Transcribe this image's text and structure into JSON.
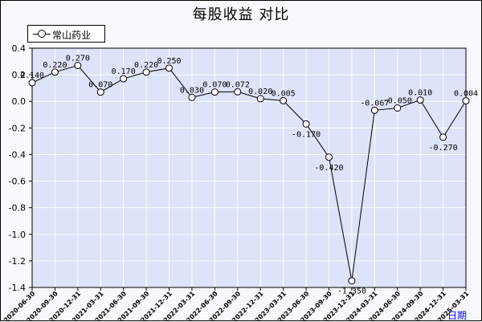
{
  "chart_data": {
    "type": "line",
    "title": "每股收益  对比",
    "x_unit_label": "日期",
    "x": [
      "2020-06-30",
      "2020-09-30",
      "2020-12-31",
      "2021-03-31",
      "2021-06-30",
      "2021-09-30",
      "2021-12-31",
      "2022-03-31",
      "2022-06-30",
      "2022-09-30",
      "2022-12-31",
      "2023-03-31",
      "2023-06-30",
      "2023-09-30",
      "2023-12-31",
      "2024-03-31",
      "2024-06-30",
      "2024-09-30",
      "2024-12-31",
      "2025-03-31"
    ],
    "series": [
      {
        "name": "常山药业",
        "values": [
          0.14,
          0.22,
          0.27,
          0.07,
          0.17,
          0.22,
          0.25,
          0.03,
          0.07,
          0.072,
          0.02,
          0.005,
          -0.17,
          -0.42,
          -1.35,
          -0.067,
          -0.05,
          0.01,
          -0.27,
          0.004
        ],
        "labels": [
          "0.140",
          "0.220",
          "0.270",
          "0.070",
          "0.170",
          "0.220",
          "0.250",
          "0.030",
          "0.070",
          "0.072",
          "0.020",
          "0.005",
          "-0.170",
          "-0.420",
          "-1.350",
          "-0.067",
          "-0.050",
          "0.010",
          "-0.270",
          "0.004"
        ]
      }
    ],
    "y_ticks": [
      "0.4",
      "0.2",
      "0.0",
      "-0.2",
      "-0.4",
      "-0.6",
      "-0.8",
      "-1.0",
      "-1.2",
      "-1.4"
    ],
    "ylim": [
      -1.4,
      0.4
    ],
    "grid": true,
    "legend_position": "top-left",
    "colors": {
      "plot_bg": "#dde3f8",
      "line": "#000000",
      "grid": "#ffffff",
      "marker_fill": "#ffffff"
    }
  }
}
